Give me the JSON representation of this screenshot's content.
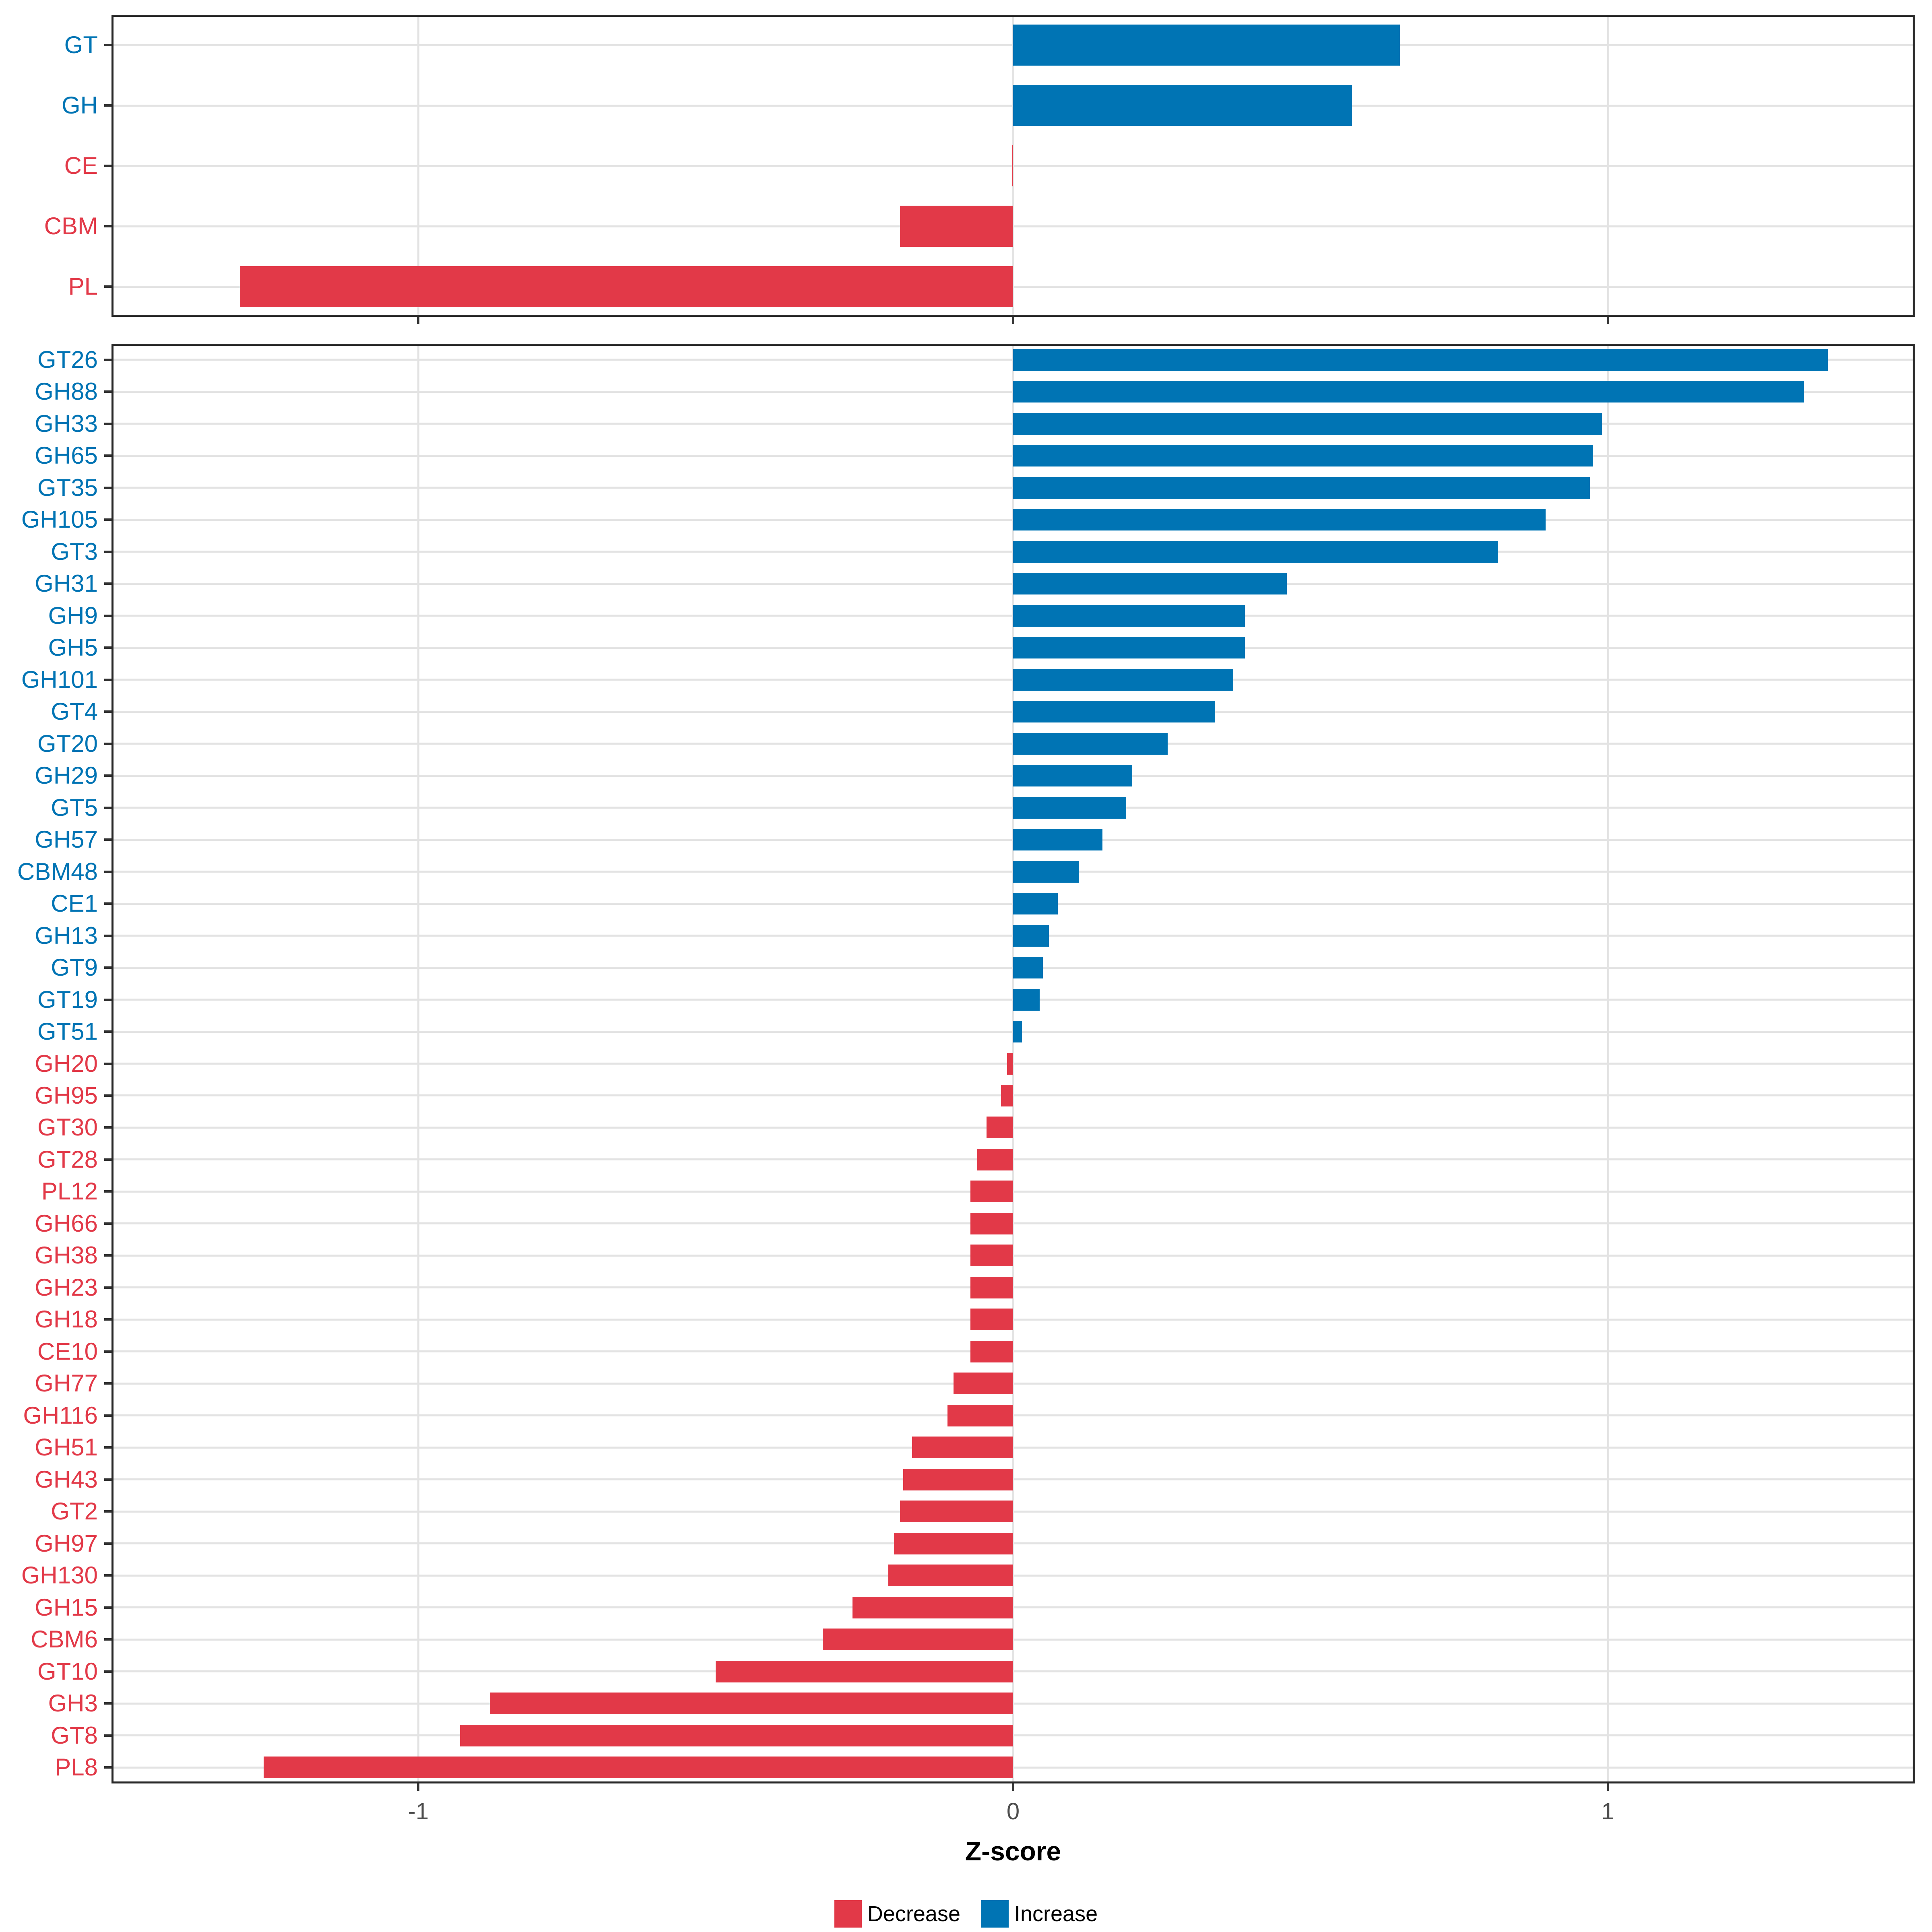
{
  "figure": {
    "axis": {
      "xlabel": "Z-score",
      "xlim": [
        -1.513,
        1.513
      ],
      "ticks": [
        {
          "value": -1,
          "label": "-1"
        },
        {
          "value": 0,
          "label": "0"
        },
        {
          "value": 1,
          "label": "1"
        }
      ]
    },
    "colors": {
      "increase": "#0074B4",
      "decrease": "#E23948",
      "grid": "#E3E3E3",
      "panel_border": "#2A2A2A",
      "tick": "#333333",
      "axis_text": "#4D4D4D",
      "axis_title": "#000000",
      "background": "#FFFFFF"
    },
    "legend": {
      "position": "bottom",
      "items": [
        {
          "label": "Decrease",
          "key": "decrease"
        },
        {
          "label": "Increase",
          "key": "increase"
        }
      ]
    }
  },
  "chart_data": [
    {
      "type": "bar",
      "orientation": "horizontal",
      "title": "",
      "xlabel": "Z-score",
      "xlim": [
        -1.513,
        1.513
      ],
      "grid": true,
      "legend_position": "bottom",
      "categories": [
        "GT",
        "GH",
        "CE",
        "CBM",
        "PL"
      ],
      "values": [
        0.65,
        0.57,
        -0.002,
        -0.19,
        -1.3
      ],
      "directions": [
        "Increase",
        "Increase",
        "Decrease",
        "Decrease",
        "Decrease"
      ]
    },
    {
      "type": "bar",
      "orientation": "horizontal",
      "title": "",
      "xlabel": "Z-score",
      "xlim": [
        -1.513,
        1.513
      ],
      "grid": true,
      "legend_position": "bottom",
      "categories": [
        "GT26",
        "GH88",
        "GH33",
        "GH65",
        "GT35",
        "GH105",
        "GT3",
        "GH31",
        "GH9",
        "GH5",
        "GH101",
        "GT4",
        "GT20",
        "GH29",
        "GT5",
        "GH57",
        "CBM48",
        "CE1",
        "GH13",
        "GT9",
        "GT19",
        "GT51",
        "GH20",
        "GH95",
        "GT30",
        "GT28",
        "PL12",
        "GH66",
        "GH38",
        "GH23",
        "GH18",
        "CE10",
        "GH77",
        "GH116",
        "GH51",
        "GH43",
        "GT2",
        "GH97",
        "GH130",
        "GH15",
        "CBM6",
        "GT10",
        "GH3",
        "GT8",
        "PL8"
      ],
      "values": [
        1.37,
        1.33,
        0.99,
        0.975,
        0.97,
        0.895,
        0.815,
        0.46,
        0.39,
        0.39,
        0.37,
        0.34,
        0.26,
        0.2,
        0.19,
        0.15,
        0.11,
        0.075,
        0.06,
        0.05,
        0.045,
        0.015,
        -0.01,
        -0.02,
        -0.045,
        -0.06,
        -0.072,
        -0.072,
        -0.072,
        -0.072,
        -0.072,
        -0.072,
        -0.1,
        -0.11,
        -0.17,
        -0.185,
        -0.19,
        -0.2,
        -0.21,
        -0.27,
        -0.32,
        -0.5,
        -0.88,
        -0.93,
        -1.26
      ],
      "directions": [
        "Increase",
        "Increase",
        "Increase",
        "Increase",
        "Increase",
        "Increase",
        "Increase",
        "Increase",
        "Increase",
        "Increase",
        "Increase",
        "Increase",
        "Increase",
        "Increase",
        "Increase",
        "Increase",
        "Increase",
        "Increase",
        "Increase",
        "Increase",
        "Increase",
        "Increase",
        "Decrease",
        "Decrease",
        "Decrease",
        "Decrease",
        "Decrease",
        "Decrease",
        "Decrease",
        "Decrease",
        "Decrease",
        "Decrease",
        "Decrease",
        "Decrease",
        "Decrease",
        "Decrease",
        "Decrease",
        "Decrease",
        "Decrease",
        "Decrease",
        "Decrease",
        "Decrease",
        "Decrease",
        "Decrease",
        "Decrease"
      ]
    }
  ]
}
